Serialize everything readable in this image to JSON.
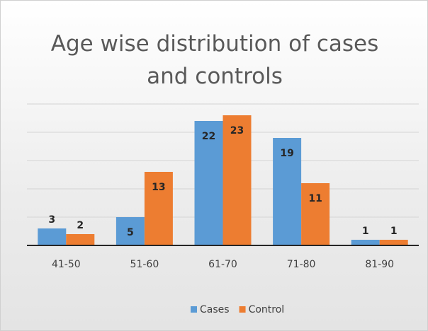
{
  "chart_data": {
    "type": "bar",
    "title": "Age wise distribution of cases and controls",
    "categories": [
      "41-50",
      "51-60",
      "61-70",
      "71-80",
      "81-90"
    ],
    "series": [
      {
        "name": "Cases",
        "color": "#5b9bd5",
        "values": [
          3,
          5,
          22,
          19,
          1
        ]
      },
      {
        "name": "Control",
        "color": "#ed7d31",
        "values": [
          2,
          13,
          23,
          11,
          1
        ]
      }
    ],
    "ylim": [
      0,
      25
    ],
    "yticks": [
      0,
      5,
      10,
      15,
      20,
      25
    ],
    "grid": true,
    "legend": "bottom"
  }
}
